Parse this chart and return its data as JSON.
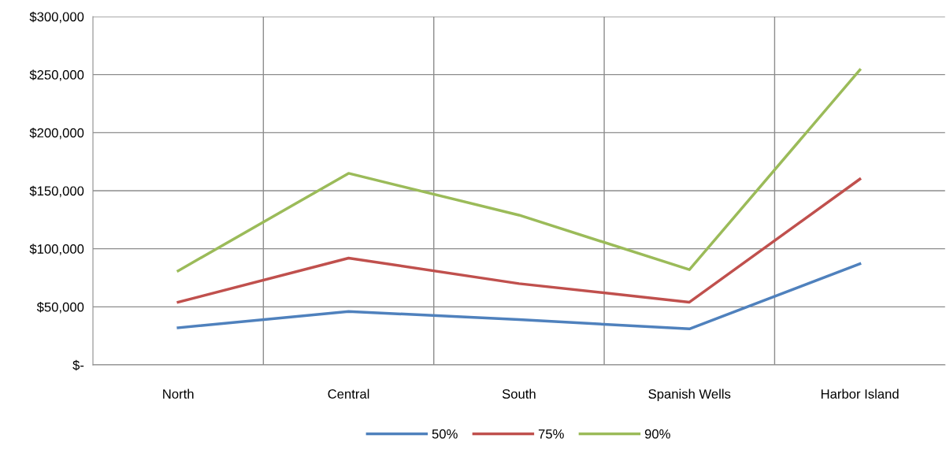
{
  "chart_data": {
    "type": "line",
    "categories": [
      "North",
      "Central",
      "South",
      "Spanish Wells",
      "Harbor Island"
    ],
    "series": [
      {
        "name": "50%",
        "color": "#4f81bd",
        "values": [
          32000,
          46000,
          39000,
          31000,
          87000
        ]
      },
      {
        "name": "75%",
        "color": "#c0504d",
        "values": [
          54000,
          92000,
          70000,
          54000,
          160000
        ]
      },
      {
        "name": "90%",
        "color": "#9bbb59",
        "values": [
          81000,
          165000,
          129000,
          82000,
          254000
        ]
      }
    ],
    "ylim": [
      0,
      300000
    ],
    "yticks": [
      {
        "value": 0,
        "label": "$-"
      },
      {
        "value": 50000,
        "label": "$50,000"
      },
      {
        "value": 100000,
        "label": "$100,000"
      },
      {
        "value": 150000,
        "label": "$150,000"
      },
      {
        "value": 200000,
        "label": "$200,000"
      },
      {
        "value": 250000,
        "label": "$250,000"
      },
      {
        "value": 300000,
        "label": "$300,000"
      }
    ],
    "grid": true,
    "legend": "bottom",
    "marker": "none",
    "line_style": "solid"
  }
}
